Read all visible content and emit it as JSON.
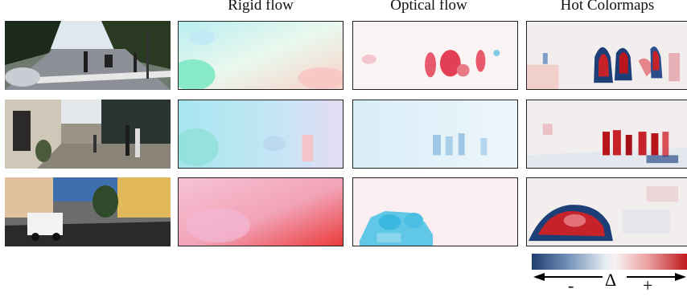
{
  "headers": {
    "rigid": "Rigid flow",
    "optical": "Optical flow",
    "hot": "Hot Colormaps"
  },
  "legend": {
    "minus": "-",
    "delta": "Δ",
    "plus": "+",
    "colors": [
      "#1f3d6e",
      "#e8edf3",
      "#c0171d"
    ]
  }
}
